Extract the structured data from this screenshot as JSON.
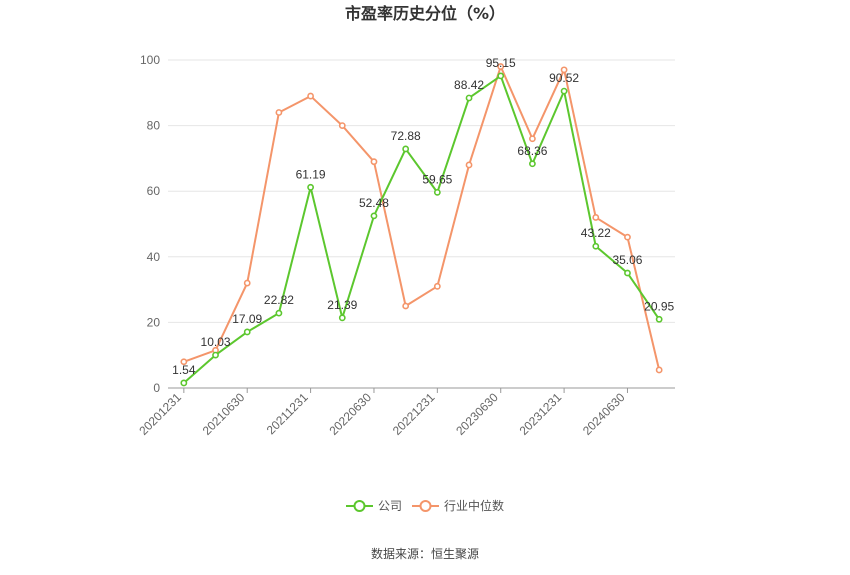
{
  "chart_data": {
    "type": "line",
    "title": "市盈率历史分位（%）",
    "source": "数据来源：恒生聚源",
    "ylim": [
      0,
      100
    ],
    "yticks": [
      "0",
      "20",
      "40",
      "60",
      "80",
      "100"
    ],
    "ytick_values": [
      0,
      20,
      40,
      60,
      80,
      100
    ],
    "x": [
      "20201231",
      "20210331",
      "20210630",
      "20210930",
      "20211231",
      "20220331",
      "20220630",
      "20220930",
      "20221231",
      "20230331",
      "20230630",
      "20230930",
      "20231231",
      "20240331",
      "20240630",
      "20240930"
    ],
    "xtick_labels": [
      {
        "index": 0,
        "label": "20201231"
      },
      {
        "index": 2,
        "label": "20210630"
      },
      {
        "index": 4,
        "label": "20211231"
      },
      {
        "index": 6,
        "label": "20220630"
      },
      {
        "index": 8,
        "label": "20221231"
      },
      {
        "index": 10,
        "label": "20230630"
      },
      {
        "index": 12,
        "label": "20231231"
      },
      {
        "index": 14,
        "label": "20240630"
      }
    ],
    "grid": true,
    "legend_position": "bottom",
    "series": [
      {
        "name": "公司",
        "color": "#5cc72e",
        "values": [
          1.54,
          10.03,
          17.09,
          22.82,
          61.19,
          21.39,
          52.48,
          72.88,
          59.65,
          88.42,
          95.15,
          68.36,
          90.52,
          43.22,
          35.06,
          20.95
        ],
        "labels": [
          "1.54",
          "10.03",
          "17.09",
          "22.82",
          "61.19",
          "21.39",
          "52.48",
          "72.88",
          "59.65",
          "88.42",
          "95.15",
          "68.36",
          "90.52",
          "43.22",
          "35.06",
          "20.95"
        ]
      },
      {
        "name": "行业中位数",
        "color": "#f4956a",
        "values": [
          8,
          11.5,
          32,
          84,
          89,
          80,
          69,
          25,
          31,
          68,
          98,
          76,
          97,
          52,
          46,
          5.5
        ]
      }
    ]
  }
}
